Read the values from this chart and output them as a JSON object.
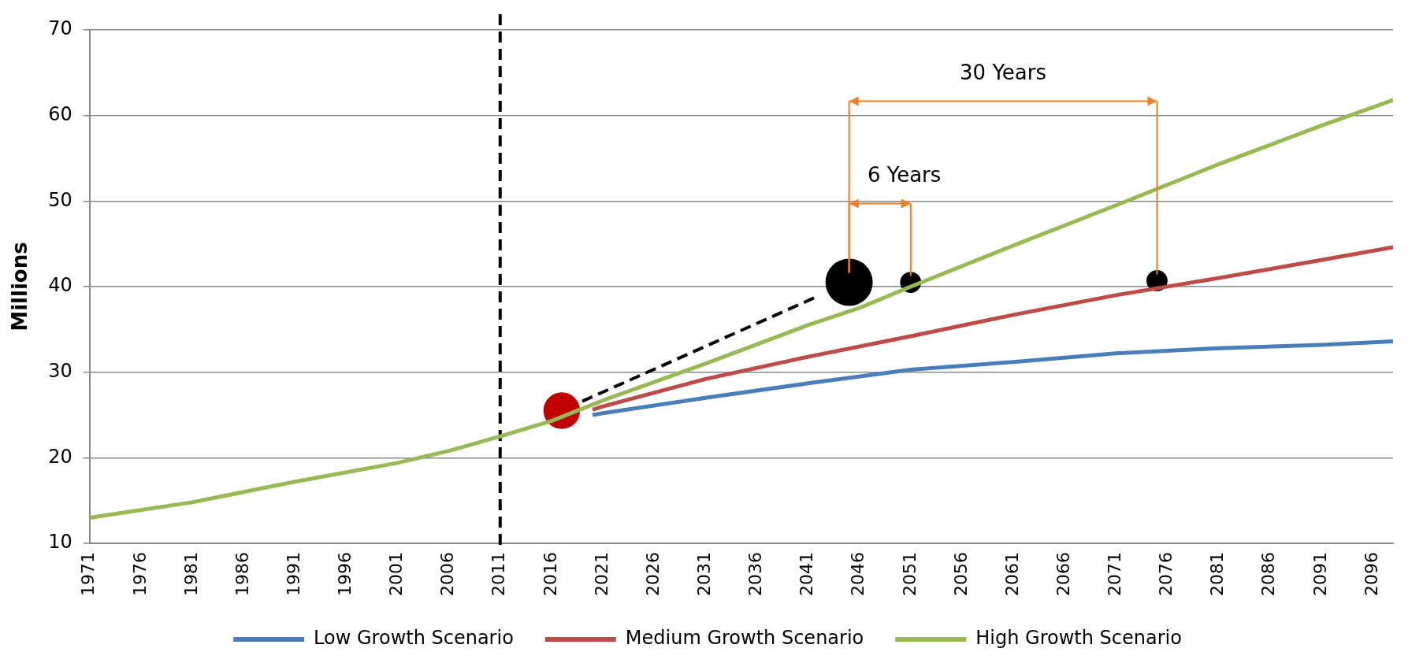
{
  "chart_data": {
    "type": "line",
    "ylabel": "Millions",
    "xlim": [
      1971,
      2098
    ],
    "xticks": [
      1971,
      1976,
      1981,
      1986,
      1991,
      1996,
      2001,
      2006,
      2011,
      2016,
      2021,
      2026,
      2031,
      2036,
      2041,
      2046,
      2051,
      2056,
      2061,
      2066,
      2071,
      2076,
      2081,
      2086,
      2091,
      2096
    ],
    "ylim": [
      10,
      70
    ],
    "yticks": [
      10,
      20,
      30,
      40,
      50,
      60,
      70
    ],
    "grid": "y",
    "legend": "bottom",
    "series": [
      {
        "name": "Low Growth Scenario",
        "color": "#4a7ebb",
        "x": [
          2020,
          2021,
          2031,
          2041,
          2051,
          2061,
          2071,
          2081,
          2091,
          2098
        ],
        "values": [
          25,
          25.2,
          27,
          28.7,
          30.3,
          31.2,
          32.2,
          32.8,
          33.2,
          33.6
        ]
      },
      {
        "name": "Medium Growth Scenario",
        "color": "#be4b48",
        "x": [
          2020,
          2021,
          2031,
          2041,
          2051,
          2061,
          2071,
          2081,
          2091,
          2098
        ],
        "values": [
          25.6,
          26,
          29.2,
          31.8,
          34.2,
          36.7,
          39,
          41,
          43.1,
          44.6
        ]
      },
      {
        "name": "High Growth Scenario",
        "color": "#98b954",
        "x": [
          1971,
          1981,
          1991,
          2001,
          2006,
          2011,
          2016,
          2021,
          2031,
          2041,
          2046,
          2051,
          2061,
          2071,
          2081,
          2091,
          2098
        ],
        "values": [
          13,
          14.8,
          17.2,
          19.4,
          20.8,
          22.5,
          24.3,
          26.7,
          31,
          35.5,
          37.5,
          40,
          44.8,
          49.5,
          54.3,
          58.8,
          61.8
        ]
      },
      {
        "type": "line",
        "color": "#000000",
        "line_style": "dashed",
        "x": [
          2019,
          2042
        ],
        "values": [
          26.6,
          38.9
        ]
      },
      {
        "type": "bubble",
        "colors": [
          "#c00000",
          "#000000",
          "#000000",
          "#000000"
        ],
        "x": [
          2017,
          2045,
          2051,
          2075
        ],
        "values": [
          25.5,
          40.5,
          40.5,
          40.7
        ],
        "sizes": [
          0.6,
          1,
          0.2,
          0.2
        ]
      }
    ],
    "ref_lines": [
      {
        "axis": "x",
        "value": 2011,
        "color": "#000000",
        "line_style": "dashed"
      }
    ],
    "annotations": [
      "30 Years",
      "6 Years"
    ]
  }
}
